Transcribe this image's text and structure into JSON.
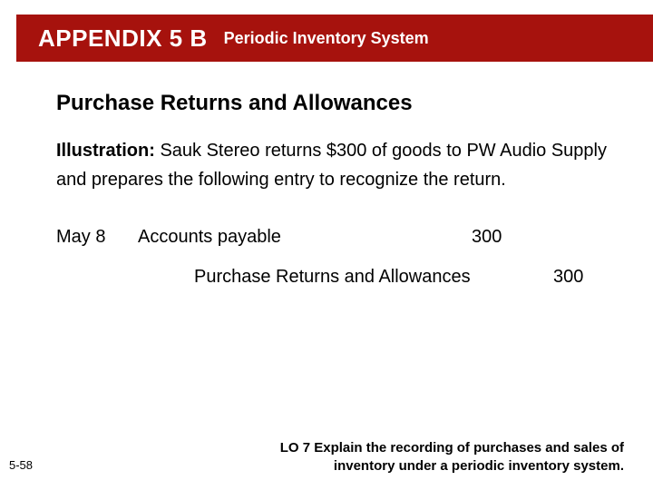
{
  "header": {
    "appendix_label": "APPENDIX  5 B",
    "subtitle": "Periodic Inventory System",
    "bg_color": "#a6120d",
    "text_color": "#ffffff"
  },
  "section_title": "Purchase Returns and Allowances",
  "body": {
    "illustration_label": "Illustration:",
    "paragraph": "Sauk Stereo returns $300 of goods to PW Audio Supply and prepares the following entry to recognize the return."
  },
  "journal_entry": {
    "date": "May 8",
    "debit_account": "Accounts payable",
    "debit_amount": "300",
    "credit_account": "Purchase Returns and Allowances",
    "credit_amount": "300"
  },
  "footer": {
    "slide_number": "5-58",
    "learning_objective": "LO 7  Explain the recording of purchases and sales of inventory under a periodic inventory system."
  },
  "typography": {
    "title_fontsize_pt": 24,
    "body_fontsize_pt": 20,
    "footer_fontsize_pt": 15
  }
}
